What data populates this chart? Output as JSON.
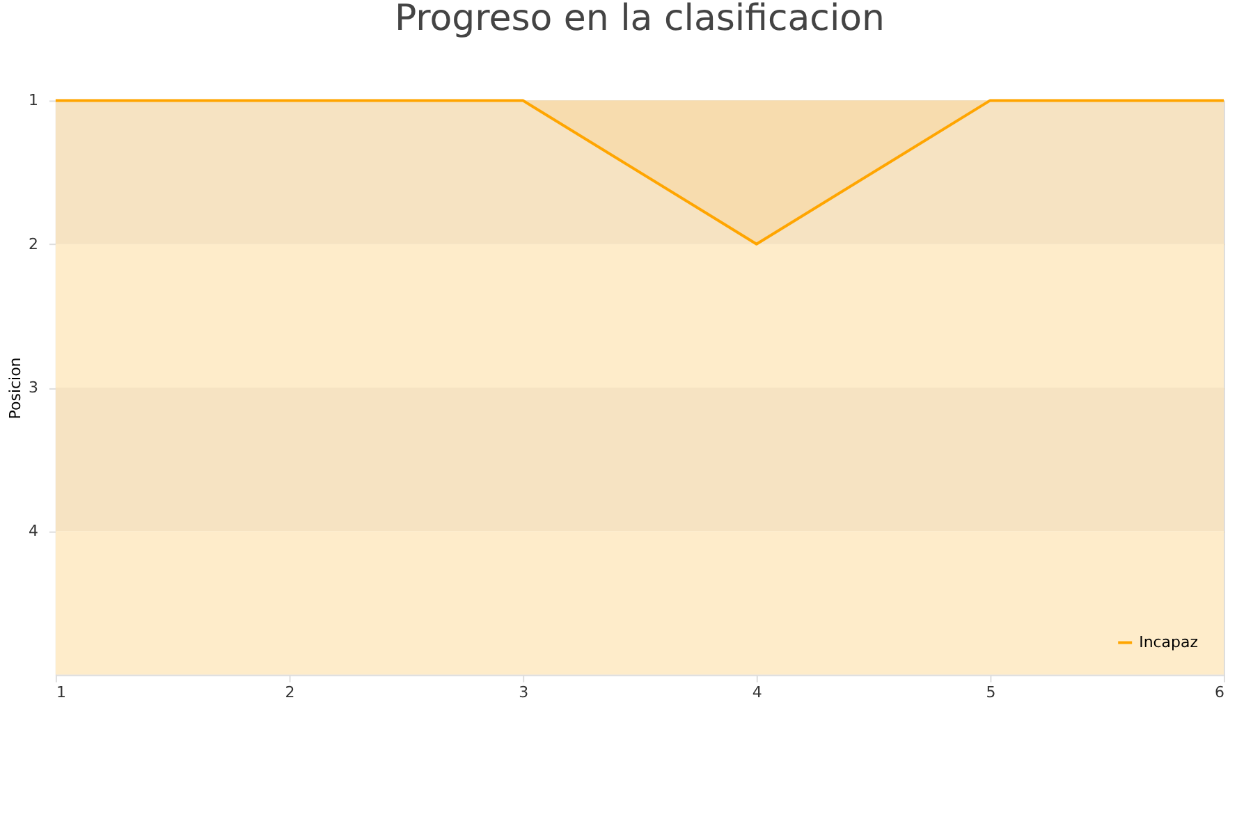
{
  "chart_data": {
    "type": "area",
    "title": "Progreso en la clasificacion",
    "ylabel": "Posicion",
    "x": [
      1,
      2,
      3,
      4,
      5,
      6
    ],
    "series": [
      {
        "name": "Incapaz",
        "color": "#ffa500",
        "values": [
          1,
          1,
          1,
          2,
          1,
          1
        ]
      }
    ],
    "bands": [
      {
        "axis": "y",
        "from": 1,
        "to": 2,
        "color": "#f6e3c2"
      },
      {
        "axis": "y",
        "from": 2,
        "to": 3,
        "color": "#feecca"
      },
      {
        "axis": "y",
        "from": 3,
        "to": 4,
        "color": "#f6e3c2"
      },
      {
        "axis": "y",
        "from": 4,
        "to": 5,
        "color": "#feecca"
      }
    ],
    "xlim": [
      1,
      6
    ],
    "xticks": [
      1,
      2,
      3,
      4,
      5,
      6
    ],
    "ylim": [
      5,
      1
    ],
    "yticks": [
      1,
      2,
      3,
      4
    ],
    "grid": "y",
    "legend": "bottom right"
  }
}
